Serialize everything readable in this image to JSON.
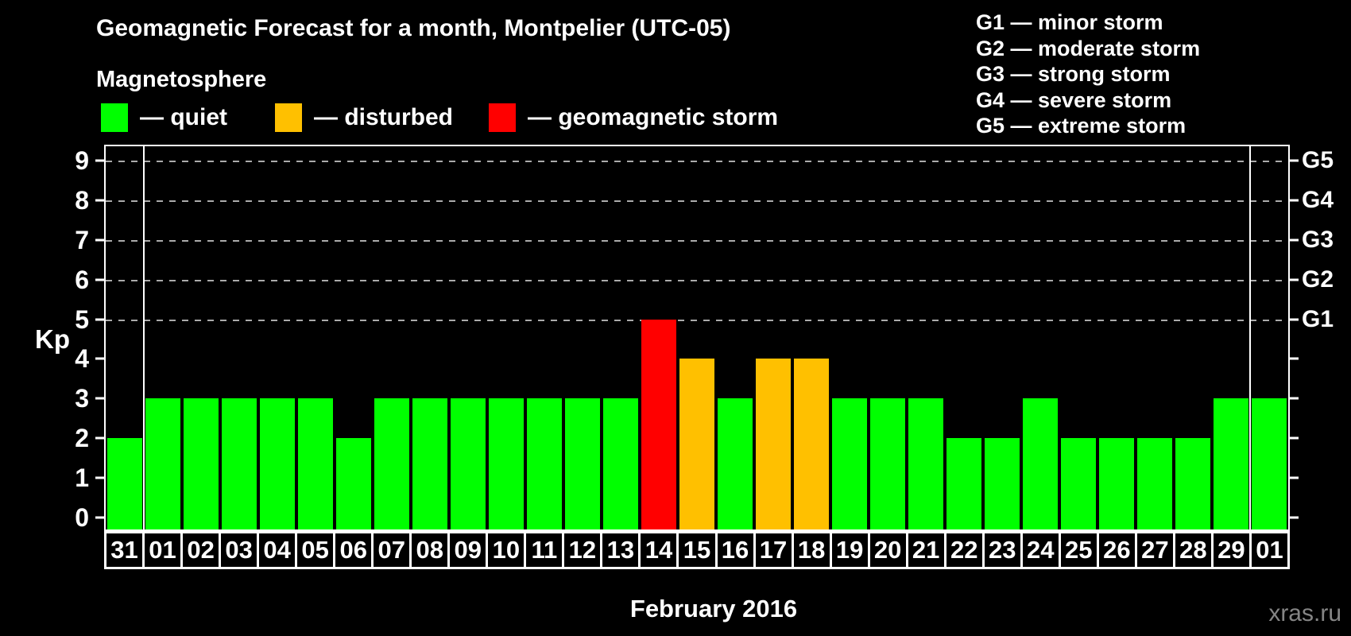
{
  "header": {
    "title": "Geomagnetic Forecast for a month, Montpelier (UTC-05)",
    "subtitle": "Magnetosphere"
  },
  "legend": {
    "items": [
      {
        "status": "quiet",
        "color": "#00ff00",
        "label": "— quiet"
      },
      {
        "status": "disturbed",
        "color": "#ffc000",
        "label": "— disturbed"
      },
      {
        "status": "storm",
        "color": "#ff0000",
        "label": "— geomagnetic storm"
      }
    ]
  },
  "g_scale_legend": {
    "items": [
      {
        "label": "G1 — minor storm"
      },
      {
        "label": "G2 — moderate storm"
      },
      {
        "label": "G3 — strong storm"
      },
      {
        "label": "G4 — severe storm"
      },
      {
        "label": "G5 — extreme storm"
      }
    ]
  },
  "axes": {
    "y_left_label": "Kp",
    "y_left_ticks": [
      9,
      8,
      7,
      6,
      5,
      4,
      3,
      2,
      1,
      0
    ],
    "y_right": [
      {
        "kp": 9,
        "label": "G5"
      },
      {
        "kp": 8,
        "label": "G4"
      },
      {
        "kp": 7,
        "label": "G3"
      },
      {
        "kp": 6,
        "label": "G2"
      },
      {
        "kp": 5,
        "label": "G1"
      }
    ],
    "x_label": "February 2016"
  },
  "status_colors": {
    "quiet": "#00ff00",
    "disturbed": "#ffc000",
    "storm": "#ff0000"
  },
  "chart_data": {
    "type": "bar",
    "title": "Geomagnetic Forecast for a month, Montpelier (UTC-05)",
    "xlabel": "February 2016",
    "ylabel": "Kp",
    "ylim": [
      0,
      9
    ],
    "grid": "dashed horizontal lines at Kp 5..9 (G1..G5)",
    "categories": [
      "31",
      "01",
      "02",
      "03",
      "04",
      "05",
      "06",
      "07",
      "08",
      "09",
      "10",
      "11",
      "12",
      "13",
      "14",
      "15",
      "16",
      "17",
      "18",
      "19",
      "20",
      "21",
      "22",
      "23",
      "24",
      "25",
      "26",
      "27",
      "28",
      "29",
      "01"
    ],
    "values": [
      2,
      3,
      3,
      3,
      3,
      3,
      2,
      3,
      3,
      3,
      3,
      3,
      3,
      3,
      5,
      4,
      3,
      4,
      4,
      3,
      3,
      3,
      2,
      2,
      3,
      2,
      2,
      2,
      2,
      3,
      3
    ],
    "statuses": [
      "quiet",
      "quiet",
      "quiet",
      "quiet",
      "quiet",
      "quiet",
      "quiet",
      "quiet",
      "quiet",
      "quiet",
      "quiet",
      "quiet",
      "quiet",
      "quiet",
      "storm",
      "disturbed",
      "quiet",
      "disturbed",
      "disturbed",
      "quiet",
      "quiet",
      "quiet",
      "quiet",
      "quiet",
      "quiet",
      "quiet",
      "quiet",
      "quiet",
      "quiet",
      "quiet",
      "quiet"
    ],
    "month_boundaries_after_index": [
      0,
      29
    ]
  },
  "watermark": "xras.ru"
}
